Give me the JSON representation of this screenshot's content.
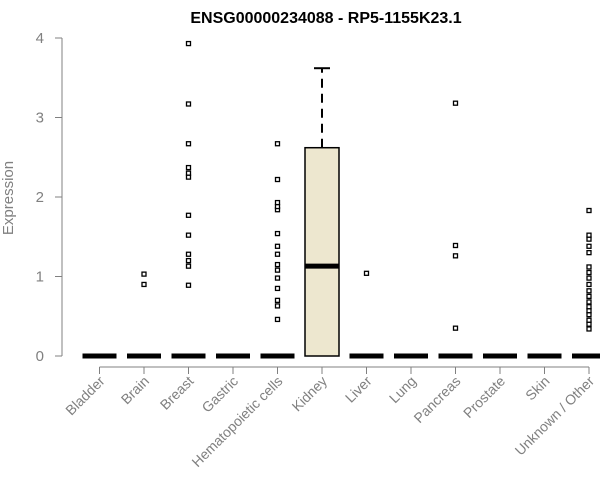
{
  "chart_data": {
    "type": "box",
    "title": "ENSG00000234088 - RP5-1155K23.1",
    "xlabel": "",
    "ylabel": "Expression",
    "ylim": [
      0,
      4
    ],
    "yticks": [
      0,
      1,
      2,
      3,
      4
    ],
    "ytick_labels": [
      "0",
      "1",
      "2",
      "3",
      "4"
    ],
    "categories": [
      "Bladder",
      "Brain",
      "Breast",
      "Gastric",
      "Hematopoietic cells",
      "Kidney",
      "Liver",
      "Lung",
      "Pancreas",
      "Prostate",
      "Skin",
      "Unknown / Other"
    ],
    "box_fill": "#ede7cf",
    "boxes": [
      {
        "category": "Bladder",
        "min": 0,
        "q1": 0,
        "median": 0,
        "q3": 0,
        "max": 0,
        "outliers": []
      },
      {
        "category": "Brain",
        "min": 0,
        "q1": 0,
        "median": 0,
        "q3": 0,
        "max": 0,
        "outliers": [
          0.9,
          1.03
        ]
      },
      {
        "category": "Breast",
        "min": 0,
        "q1": 0,
        "median": 0,
        "q3": 0,
        "max": 0,
        "outliers": [
          0.89,
          1.13,
          1.2,
          1.28,
          1.52,
          1.77,
          2.25,
          2.3,
          2.37,
          2.67,
          3.17,
          3.93
        ]
      },
      {
        "category": "Gastric",
        "min": 0,
        "q1": 0,
        "median": 0,
        "q3": 0,
        "max": 0,
        "outliers": []
      },
      {
        "category": "Hematopoietic cells",
        "min": 0,
        "q1": 0,
        "median": 0,
        "q3": 0,
        "max": 0,
        "outliers": [
          0.46,
          0.63,
          0.7,
          0.85,
          0.98,
          1.08,
          1.15,
          1.28,
          1.38,
          1.54,
          1.84,
          1.88,
          1.93,
          2.22,
          2.67
        ]
      },
      {
        "category": "Kidney",
        "min": 0,
        "q1": 0,
        "median": 1.13,
        "q3": 2.62,
        "max": 3.62,
        "outliers": []
      },
      {
        "category": "Liver",
        "min": 0,
        "q1": 0,
        "median": 0,
        "q3": 0,
        "max": 0,
        "outliers": [
          1.04
        ]
      },
      {
        "category": "Lung",
        "min": 0,
        "q1": 0,
        "median": 0,
        "q3": 0,
        "max": 0,
        "outliers": []
      },
      {
        "category": "Pancreas",
        "min": 0,
        "q1": 0,
        "median": 0,
        "q3": 0,
        "max": 0,
        "outliers": [
          0.35,
          1.26,
          1.39,
          3.18
        ]
      },
      {
        "category": "Prostate",
        "min": 0,
        "q1": 0,
        "median": 0,
        "q3": 0,
        "max": 0,
        "outliers": []
      },
      {
        "category": "Skin",
        "min": 0,
        "q1": 0,
        "median": 0,
        "q3": 0,
        "max": 0,
        "outliers": []
      },
      {
        "category": "Unknown / Other",
        "min": 0,
        "q1": 0,
        "median": 0,
        "q3": 0,
        "max": 0,
        "outliers": [
          0.34,
          0.4,
          0.45,
          0.52,
          0.57,
          0.62,
          0.68,
          0.75,
          0.82,
          0.9,
          0.98,
          1.05,
          1.12,
          1.3,
          1.38,
          1.47,
          1.52,
          1.83
        ]
      }
    ]
  }
}
